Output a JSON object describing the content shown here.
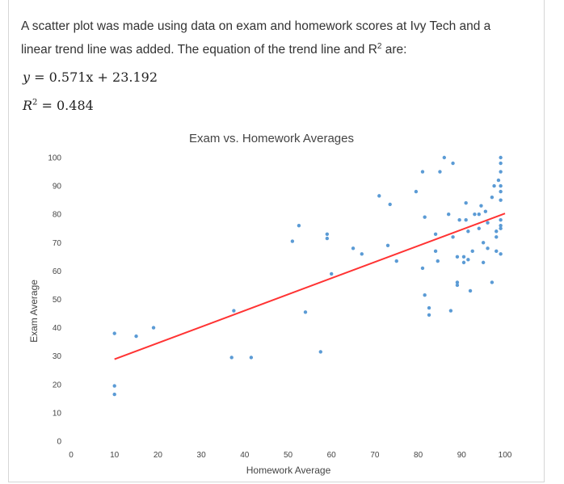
{
  "intro": {
    "line1": "A scatter plot was made using data on exam and homework scores at Ivy Tech and a",
    "line2": "linear trend line was added.  The equation of the trend line and R",
    "line2_sup": "2",
    "line2_end": " are:"
  },
  "equations": {
    "trend": "0.571x + 23.192",
    "r2_label": "R",
    "r2_sup": "2",
    "r2_value": " = 0.484"
  },
  "chart_data": {
    "type": "scatter",
    "title": "Exam vs. Homework Averages",
    "xlabel": "Homework Average",
    "ylabel": "Exam Average",
    "xlim": [
      0,
      100
    ],
    "ylim": [
      0,
      100
    ],
    "xticks": [
      0,
      10,
      20,
      30,
      40,
      50,
      60,
      70,
      80,
      90,
      100
    ],
    "yticks": [
      0,
      10,
      20,
      30,
      40,
      50,
      60,
      70,
      80,
      90,
      100
    ],
    "grid": false,
    "legend": "none",
    "point_color": "#5b9bd5",
    "trend_color": "#ff3333",
    "trendline": {
      "slope": 0.571,
      "intercept": 23.192,
      "x_range": [
        10,
        100
      ]
    },
    "points": [
      [
        10,
        38
      ],
      [
        10,
        19.5
      ],
      [
        10,
        16.5
      ],
      [
        15,
        37
      ],
      [
        19,
        40
      ],
      [
        37,
        29.5
      ],
      [
        37.5,
        46
      ],
      [
        41.5,
        29.5
      ],
      [
        51,
        70.5
      ],
      [
        52.5,
        76
      ],
      [
        54,
        45.5
      ],
      [
        57.5,
        31.5
      ],
      [
        59,
        73
      ],
      [
        59,
        71.5
      ],
      [
        60,
        59
      ],
      [
        65,
        68
      ],
      [
        67,
        66
      ],
      [
        71,
        86.5
      ],
      [
        73,
        69
      ],
      [
        73.5,
        83.5
      ],
      [
        75,
        63.5
      ],
      [
        79.5,
        88
      ],
      [
        81,
        95
      ],
      [
        81,
        61
      ],
      [
        81.5,
        79
      ],
      [
        81.5,
        51.5
      ],
      [
        82.5,
        47
      ],
      [
        82.5,
        44.5
      ],
      [
        84,
        67
      ],
      [
        84,
        73
      ],
      [
        84.5,
        63.5
      ],
      [
        85,
        95
      ],
      [
        86,
        100
      ],
      [
        87,
        80
      ],
      [
        87.5,
        46
      ],
      [
        88,
        98
      ],
      [
        88,
        72
      ],
      [
        89,
        65
      ],
      [
        89,
        56
      ],
      [
        89,
        55
      ],
      [
        89.5,
        78
      ],
      [
        90.5,
        63
      ],
      [
        90.5,
        65
      ],
      [
        91,
        78
      ],
      [
        91,
        84
      ],
      [
        91.5,
        74
      ],
      [
        91.5,
        64
      ],
      [
        92,
        53
      ],
      [
        92.5,
        67
      ],
      [
        93,
        80
      ],
      [
        94,
        80
      ],
      [
        94,
        75
      ],
      [
        94.5,
        83
      ],
      [
        95,
        70
      ],
      [
        95,
        63
      ],
      [
        95.5,
        81
      ],
      [
        96,
        77
      ],
      [
        96,
        68
      ],
      [
        97,
        86
      ],
      [
        97,
        56
      ],
      [
        97.5,
        90
      ],
      [
        98,
        74
      ],
      [
        98,
        72
      ],
      [
        98,
        67
      ],
      [
        98.5,
        92
      ],
      [
        99,
        100
      ],
      [
        99,
        98
      ],
      [
        99,
        95
      ],
      [
        99,
        90
      ],
      [
        99,
        88
      ],
      [
        99,
        85
      ],
      [
        99,
        78
      ],
      [
        99,
        76
      ],
      [
        99,
        75
      ],
      [
        99,
        66
      ]
    ]
  }
}
